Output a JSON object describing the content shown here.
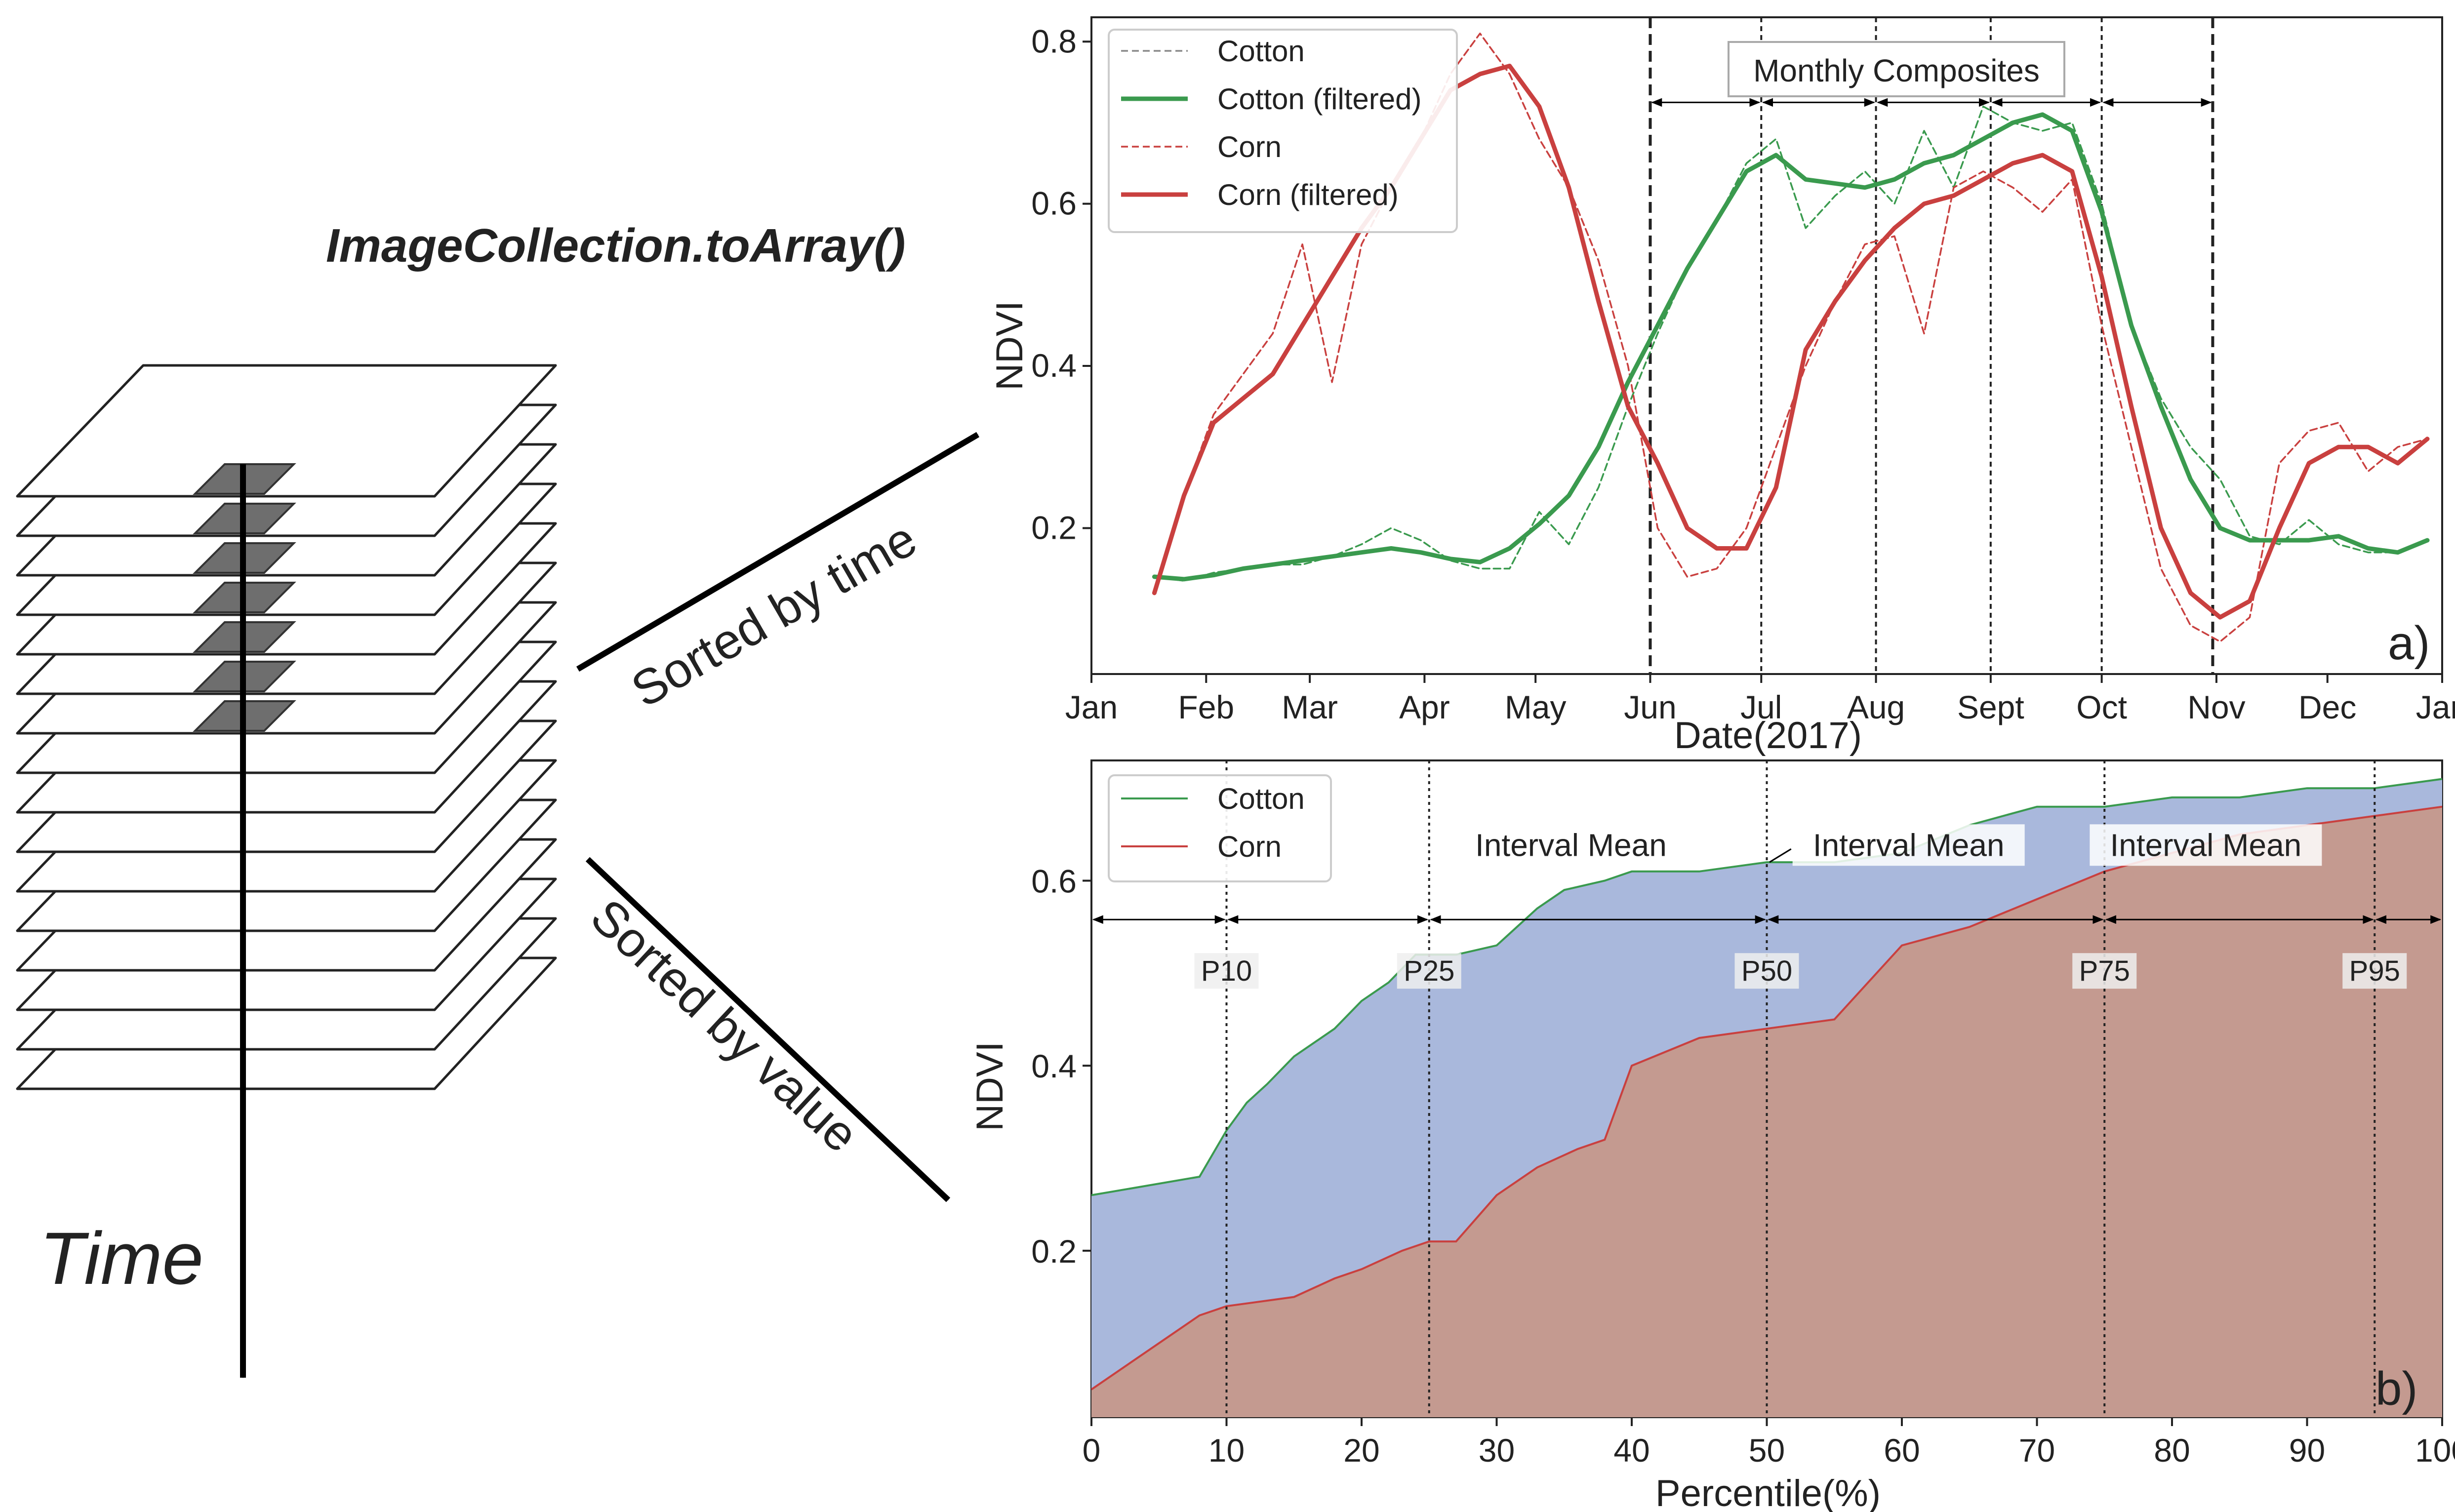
{
  "diagram": {
    "heading": "ImageCollection.toArray()",
    "time_label": "Time",
    "arrow_time_label": "Sorted by time",
    "arrow_value_label": "Sorted by value"
  },
  "colors": {
    "cotton": "#3a9a4e",
    "corn": "#c9403f",
    "cotton_fill": "#a9b8dc",
    "corn_fill": "#c49a90",
    "pixel": "#6e6e6e"
  },
  "chart_data": [
    {
      "type": "line",
      "panel_label": "a)",
      "xlabel": "Date(2017)",
      "ylabel": "NDVI",
      "ylim": [
        0.02,
        0.83
      ],
      "xlim": [
        0,
        365
      ],
      "x_ticks": [
        {
          "label": "Jan",
          "day": 0
        },
        {
          "label": "Feb",
          "day": 31
        },
        {
          "label": "Mar",
          "day": 59
        },
        {
          "label": "Apr",
          "day": 90
        },
        {
          "label": "May",
          "day": 120
        },
        {
          "label": "Jun",
          "day": 151
        },
        {
          "label": "Jul",
          "day": 181
        },
        {
          "label": "Aug",
          "day": 212
        },
        {
          "label": "Sept",
          "day": 243
        },
        {
          "label": "Oct",
          "day": 273
        },
        {
          "label": "Nov",
          "day": 304
        },
        {
          "label": "Dec",
          "day": 334
        },
        {
          "label": "Jan",
          "day": 365
        }
      ],
      "y_ticks": [
        0.2,
        0.4,
        0.6,
        0.8
      ],
      "composite_boundaries": [
        151,
        181,
        212,
        243,
        273,
        303
      ],
      "annotation": "Monthly Composites",
      "series": [
        {
          "name": "Cotton",
          "style": "raw",
          "color": "#3a9a4e",
          "x": [
            17,
            25,
            33,
            41,
            49,
            57,
            65,
            73,
            81,
            89,
            97,
            105,
            113,
            121,
            129,
            137,
            145,
            153,
            161,
            169,
            177,
            185,
            193,
            201,
            209,
            217,
            225,
            233,
            241,
            249,
            257,
            265,
            273,
            281,
            289,
            297,
            305,
            313,
            321,
            329,
            337,
            345,
            353,
            361
          ],
          "y": [
            0.14,
            0.135,
            0.145,
            0.15,
            0.155,
            0.155,
            0.165,
            0.18,
            0.2,
            0.185,
            0.16,
            0.15,
            0.15,
            0.22,
            0.18,
            0.25,
            0.35,
            0.44,
            0.52,
            0.58,
            0.65,
            0.68,
            0.57,
            0.61,
            0.64,
            0.6,
            0.69,
            0.62,
            0.72,
            0.7,
            0.69,
            0.7,
            0.6,
            0.45,
            0.36,
            0.3,
            0.26,
            0.19,
            0.18,
            0.21,
            0.18,
            0.17,
            0.17,
            0.185
          ]
        },
        {
          "name": "Cotton (filtered)",
          "style": "filtered",
          "color": "#3a9a4e",
          "x": [
            17,
            25,
            33,
            41,
            49,
            57,
            65,
            73,
            81,
            89,
            97,
            105,
            113,
            121,
            129,
            137,
            145,
            153,
            161,
            169,
            177,
            185,
            193,
            201,
            209,
            217,
            225,
            233,
            241,
            249,
            257,
            265,
            273,
            281,
            289,
            297,
            305,
            313,
            321,
            329,
            337,
            345,
            353,
            361
          ],
          "y": [
            0.14,
            0.137,
            0.142,
            0.15,
            0.155,
            0.16,
            0.165,
            0.17,
            0.175,
            0.17,
            0.162,
            0.158,
            0.175,
            0.205,
            0.24,
            0.3,
            0.38,
            0.45,
            0.52,
            0.58,
            0.64,
            0.66,
            0.63,
            0.625,
            0.62,
            0.63,
            0.65,
            0.66,
            0.68,
            0.7,
            0.71,
            0.69,
            0.59,
            0.45,
            0.35,
            0.26,
            0.2,
            0.185,
            0.185,
            0.185,
            0.19,
            0.175,
            0.17,
            0.185
          ]
        },
        {
          "name": "Corn",
          "style": "raw",
          "color": "#c9403f",
          "x": [
            17,
            25,
            33,
            41,
            49,
            57,
            65,
            73,
            81,
            89,
            97,
            105,
            113,
            121,
            129,
            137,
            145,
            153,
            161,
            169,
            177,
            185,
            193,
            201,
            209,
            217,
            225,
            233,
            241,
            249,
            257,
            265,
            273,
            281,
            289,
            297,
            305,
            313,
            321,
            329,
            337,
            345,
            353,
            361
          ],
          "y": [
            0.12,
            0.24,
            0.34,
            0.39,
            0.44,
            0.55,
            0.38,
            0.55,
            0.62,
            0.68,
            0.76,
            0.81,
            0.76,
            0.68,
            0.62,
            0.53,
            0.4,
            0.2,
            0.14,
            0.15,
            0.2,
            0.3,
            0.4,
            0.48,
            0.55,
            0.56,
            0.44,
            0.62,
            0.64,
            0.62,
            0.59,
            0.63,
            0.45,
            0.3,
            0.15,
            0.08,
            0.06,
            0.09,
            0.28,
            0.32,
            0.33,
            0.27,
            0.3,
            0.31
          ]
        },
        {
          "name": "Corn (filtered)",
          "style": "filtered",
          "color": "#c9403f",
          "x": [
            17,
            25,
            33,
            41,
            49,
            57,
            65,
            73,
            81,
            89,
            97,
            105,
            113,
            121,
            129,
            137,
            145,
            153,
            161,
            169,
            177,
            185,
            193,
            201,
            209,
            217,
            225,
            233,
            241,
            249,
            257,
            265,
            273,
            281,
            289,
            297,
            305,
            313,
            321,
            329,
            337,
            345,
            353,
            361
          ],
          "y": [
            0.12,
            0.24,
            0.33,
            0.36,
            0.39,
            0.45,
            0.51,
            0.57,
            0.62,
            0.68,
            0.74,
            0.76,
            0.77,
            0.72,
            0.62,
            0.48,
            0.35,
            0.28,
            0.2,
            0.175,
            0.175,
            0.25,
            0.42,
            0.48,
            0.53,
            0.57,
            0.6,
            0.61,
            0.63,
            0.65,
            0.66,
            0.64,
            0.51,
            0.35,
            0.2,
            0.12,
            0.09,
            0.11,
            0.2,
            0.28,
            0.3,
            0.3,
            0.28,
            0.31
          ]
        }
      ]
    },
    {
      "type": "area",
      "panel_label": "b)",
      "xlabel": "Percentile(%)",
      "ylabel": "NDVI",
      "xlim": [
        0,
        100
      ],
      "ylim": [
        0.02,
        0.73
      ],
      "x_ticks": [
        0,
        10,
        20,
        30,
        40,
        50,
        60,
        70,
        80,
        90,
        100
      ],
      "y_ticks": [
        0.2,
        0.4,
        0.6
      ],
      "percentile_markers": [
        {
          "label": "P10",
          "x": 10
        },
        {
          "label": "P25",
          "x": 25
        },
        {
          "label": "P50",
          "x": 50
        },
        {
          "label": "P75",
          "x": 75
        },
        {
          "label": "P95",
          "x": 95
        }
      ],
      "interval_annotations": [
        {
          "label": "Interval Mean",
          "x": 35.5
        },
        {
          "label": "Interval Mean",
          "x": 60.5
        },
        {
          "label": "Interval Mean",
          "x": 82.5
        }
      ],
      "series": [
        {
          "name": "Cotton",
          "color": "#3a9a4e",
          "fill": "#a9b8dc",
          "x": [
            0,
            8,
            10,
            11.5,
            13,
            15,
            18,
            20,
            22,
            24,
            25,
            27,
            30,
            33,
            35,
            38,
            40,
            45,
            50,
            55,
            60,
            65,
            70,
            75,
            80,
            85,
            90,
            95,
            100
          ],
          "y": [
            0.26,
            0.28,
            0.33,
            0.36,
            0.38,
            0.41,
            0.44,
            0.47,
            0.49,
            0.52,
            0.52,
            0.52,
            0.53,
            0.57,
            0.59,
            0.6,
            0.61,
            0.61,
            0.62,
            0.62,
            0.63,
            0.66,
            0.68,
            0.68,
            0.69,
            0.69,
            0.7,
            0.7,
            0.71
          ]
        },
        {
          "name": "Corn",
          "color": "#c9403f",
          "fill": "#c49a90",
          "x": [
            0,
            8,
            10,
            15,
            18,
            20,
            23,
            25,
            27,
            30,
            33,
            36,
            38,
            40,
            45,
            50,
            55,
            60,
            65,
            70,
            75,
            80,
            85,
            90,
            95,
            100
          ],
          "y": [
            0.05,
            0.13,
            0.14,
            0.15,
            0.17,
            0.18,
            0.2,
            0.21,
            0.21,
            0.26,
            0.29,
            0.31,
            0.32,
            0.4,
            0.43,
            0.44,
            0.45,
            0.53,
            0.55,
            0.58,
            0.61,
            0.63,
            0.65,
            0.66,
            0.67,
            0.68
          ]
        }
      ]
    }
  ]
}
